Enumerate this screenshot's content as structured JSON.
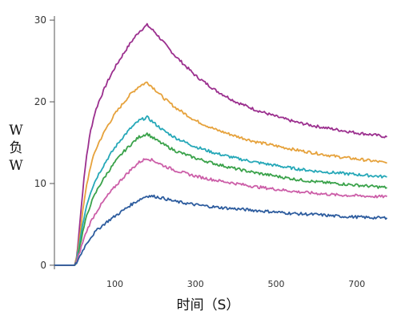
{
  "chart_data": {
    "type": "line",
    "xlabel": "时间（S）",
    "ylabel": "W\n负\nW",
    "x_ticks": [
      100,
      300,
      500,
      700
    ],
    "y_ticks": [
      0,
      10,
      20,
      30
    ],
    "xlim": [
      -50,
      780
    ],
    "ylim": [
      -0.5,
      30.5
    ],
    "grid": false,
    "series": [
      {
        "color": "#9b2f8e",
        "x": [
          -50,
          0,
          5,
          10,
          20,
          30,
          40,
          50,
          60,
          80,
          100,
          120,
          140,
          160,
          180,
          200,
          220,
          250,
          300,
          350,
          400,
          450,
          500,
          550,
          600,
          650,
          700,
          750,
          775
        ],
        "values": [
          0,
          0,
          1.0,
          3.5,
          9.0,
          13.5,
          16.5,
          18.6,
          20.0,
          22.3,
          24.2,
          25.8,
          27.3,
          28.6,
          29.4,
          28.5,
          27.3,
          25.6,
          23.2,
          21.4,
          20.0,
          19.0,
          18.2,
          17.5,
          17.0,
          16.6,
          16.2,
          15.9,
          15.7
        ]
      },
      {
        "color": "#e6a23c",
        "x": [
          -50,
          0,
          5,
          10,
          20,
          30,
          40,
          50,
          60,
          80,
          100,
          120,
          140,
          160,
          180,
          200,
          220,
          250,
          300,
          350,
          400,
          450,
          500,
          550,
          600,
          650,
          700,
          750,
          775
        ],
        "values": [
          0,
          0,
          0.8,
          2.5,
          6.5,
          9.8,
          12.2,
          13.8,
          15.0,
          16.9,
          18.5,
          19.8,
          21.0,
          21.9,
          22.4,
          21.5,
          20.5,
          19.3,
          17.7,
          16.6,
          15.8,
          15.1,
          14.6,
          14.1,
          13.7,
          13.3,
          13.0,
          12.7,
          12.5
        ]
      },
      {
        "color": "#26a8b8",
        "x": [
          -50,
          0,
          5,
          10,
          20,
          30,
          40,
          50,
          60,
          80,
          100,
          120,
          140,
          160,
          180,
          200,
          220,
          250,
          300,
          350,
          400,
          450,
          500,
          550,
          600,
          650,
          700,
          750,
          775
        ],
        "values": [
          0,
          0,
          0.6,
          2.0,
          5.0,
          7.4,
          9.0,
          10.2,
          11.2,
          12.9,
          14.4,
          15.7,
          16.8,
          17.7,
          18.1,
          17.3,
          16.5,
          15.6,
          14.5,
          13.7,
          13.1,
          12.6,
          12.2,
          11.8,
          11.5,
          11.3,
          11.1,
          10.9,
          10.8
        ]
      },
      {
        "color": "#3aa24a",
        "x": [
          -50,
          0,
          5,
          10,
          20,
          30,
          40,
          50,
          60,
          80,
          100,
          120,
          140,
          160,
          180,
          200,
          220,
          250,
          300,
          350,
          400,
          450,
          500,
          550,
          600,
          650,
          700,
          750,
          775
        ],
        "values": [
          0,
          0,
          0.5,
          1.6,
          4.0,
          6.0,
          7.5,
          8.6,
          9.6,
          11.2,
          12.6,
          13.8,
          14.8,
          15.7,
          16.1,
          15.4,
          14.8,
          14.0,
          13.1,
          12.4,
          11.8,
          11.3,
          10.9,
          10.5,
          10.2,
          10.0,
          9.8,
          9.6,
          9.5
        ]
      },
      {
        "color": "#cc5ea8",
        "x": [
          -50,
          0,
          5,
          10,
          20,
          30,
          40,
          50,
          60,
          80,
          100,
          120,
          140,
          160,
          180,
          200,
          220,
          250,
          300,
          350,
          400,
          450,
          500,
          550,
          600,
          650,
          700,
          750,
          775
        ],
        "values": [
          0,
          0,
          0.4,
          1.2,
          2.8,
          4.2,
          5.3,
          6.2,
          7.0,
          8.4,
          9.6,
          10.7,
          11.7,
          12.6,
          13.1,
          12.7,
          12.2,
          11.6,
          10.9,
          10.4,
          10.0,
          9.6,
          9.3,
          9.0,
          8.8,
          8.6,
          8.5,
          8.4,
          8.4
        ]
      },
      {
        "color": "#2d5c9e",
        "x": [
          -50,
          0,
          5,
          10,
          20,
          30,
          40,
          50,
          60,
          80,
          100,
          120,
          140,
          160,
          180,
          200,
          220,
          250,
          300,
          350,
          400,
          450,
          500,
          550,
          600,
          650,
          700,
          750,
          775
        ],
        "values": [
          0,
          0,
          0.3,
          0.8,
          1.8,
          2.7,
          3.4,
          4.0,
          4.5,
          5.3,
          6.0,
          6.7,
          7.4,
          8.0,
          8.5,
          8.4,
          8.2,
          7.8,
          7.4,
          7.1,
          6.9,
          6.7,
          6.5,
          6.3,
          6.2,
          6.0,
          5.9,
          5.8,
          5.8
        ]
      }
    ]
  }
}
